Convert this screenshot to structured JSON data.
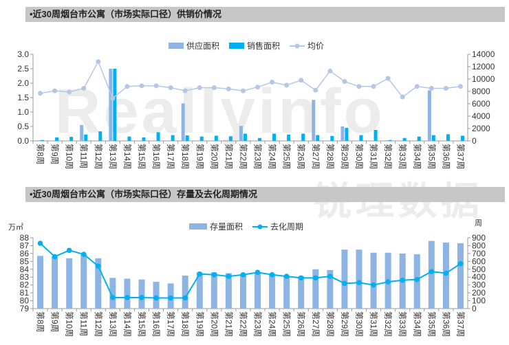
{
  "watermark": {
    "latin": "Reallyinfo",
    "cn": "锐理数据"
  },
  "chart_data": [
    {
      "type": "bar",
      "title": "•近30周烟台市公寓（市场实际口径）供销价情况",
      "categories": [
        "第8周",
        "第9周",
        "第10周",
        "第11周",
        "第12周",
        "第13周",
        "第14周",
        "第15周",
        "第16周",
        "第17周",
        "第18周",
        "第19周",
        "第20周",
        "第21周",
        "第22周",
        "第23周",
        "第24周",
        "第25周",
        "第26周",
        "第27周",
        "第28周",
        "第29周",
        "第30周",
        "第31周",
        "第32周",
        "第33周",
        "第34周",
        "第35周",
        "第36周",
        "第37周"
      ],
      "series": [
        {
          "name": "供应面积",
          "kind": "bar",
          "axis": "left",
          "color": "#8eb4e3",
          "values": [
            0.02,
            0,
            0,
            0.55,
            0,
            2.5,
            0,
            0,
            0,
            0,
            1.3,
            0,
            0,
            0,
            0.52,
            0,
            0,
            0,
            0,
            1.42,
            0,
            0.5,
            0,
            0,
            0.02,
            0,
            0,
            1.75,
            0,
            0
          ]
        },
        {
          "name": "销售面积",
          "kind": "bar",
          "axis": "left",
          "color": "#00b0f0",
          "values": [
            0.03,
            0.12,
            0.14,
            0.22,
            0.33,
            2.5,
            0.15,
            0.12,
            0.3,
            0.2,
            0.19,
            0.15,
            0.18,
            0.16,
            0.25,
            0.1,
            0.25,
            0.22,
            0.25,
            0.2,
            0.17,
            0.45,
            0.2,
            0.38,
            0.03,
            0.1,
            0.15,
            0.2,
            0.23,
            0.18
          ]
        },
        {
          "name": "均价",
          "kind": "line",
          "axis": "right",
          "color": "#b4c7e7",
          "values": [
            7700,
            8100,
            7900,
            8500,
            12800,
            6900,
            8800,
            8900,
            8900,
            8600,
            8100,
            8600,
            8600,
            8400,
            8100,
            8700,
            9500,
            9000,
            9800,
            8200,
            11300,
            9600,
            8800,
            8800,
            10100,
            7100,
            8800,
            8500,
            8500,
            8800
          ]
        }
      ],
      "y_left": {
        "min": 0,
        "max": 3.0,
        "ticks": [
          "0.0",
          "0.5",
          "1.0",
          "1.5",
          "2.0",
          "2.5",
          "3.0"
        ]
      },
      "y_right": {
        "min": 0,
        "max": 14000,
        "ticks": [
          "0",
          "2000",
          "4000",
          "6000",
          "8000",
          "10000",
          "12000",
          "14000"
        ]
      },
      "legend_position": "top-center"
    },
    {
      "type": "bar",
      "title": "•近30周烟台市公寓（市场实际口径）存量及去化周期情况",
      "left_unit": "万㎡",
      "right_unit": "周",
      "categories": [
        "第8周",
        "第9周",
        "第10周",
        "第11周",
        "第12周",
        "第13周",
        "第14周",
        "第15周",
        "第16周",
        "第17周",
        "第18周",
        "第19周",
        "第20周",
        "第21周",
        "第22周",
        "第23周",
        "第24周",
        "第25周",
        "第26周",
        "第27周",
        "第28周",
        "第29周",
        "第30周",
        "第31周",
        "第32周",
        "第33周",
        "第34周",
        "第35周",
        "第36周",
        "第37周"
      ],
      "series": [
        {
          "name": "存量面积",
          "kind": "bar",
          "axis": "left",
          "color": "#8eb4e3",
          "values": [
            85.7,
            85.6,
            85.4,
            85.9,
            85.4,
            82.9,
            82.8,
            82.7,
            82.4,
            82.2,
            83.2,
            83.6,
            83.6,
            83.5,
            83.4,
            83.5,
            83.4,
            83.2,
            83.1,
            84.0,
            83.9,
            86.5,
            86.5,
            86.1,
            86.1,
            86.0,
            85.9,
            87.6,
            87.4,
            87.3
          ]
        },
        {
          "name": "去化周期",
          "kind": "line",
          "axis": "right",
          "color": "#00b0f0",
          "values": [
            830,
            660,
            740,
            690,
            540,
            140,
            140,
            140,
            135,
            135,
            135,
            440,
            430,
            410,
            430,
            460,
            430,
            410,
            390,
            390,
            410,
            320,
            330,
            300,
            340,
            360,
            370,
            470,
            450,
            570
          ]
        }
      ],
      "y_left": {
        "min": 79,
        "max": 88,
        "ticks": [
          "79",
          "80",
          "81",
          "82",
          "83",
          "84",
          "85",
          "86",
          "87",
          "88"
        ]
      },
      "y_right": {
        "min": 0,
        "max": 900,
        "ticks": [
          "0",
          "100",
          "200",
          "300",
          "400",
          "500",
          "600",
          "700",
          "800",
          "900"
        ]
      },
      "legend_position": "top-center"
    }
  ]
}
